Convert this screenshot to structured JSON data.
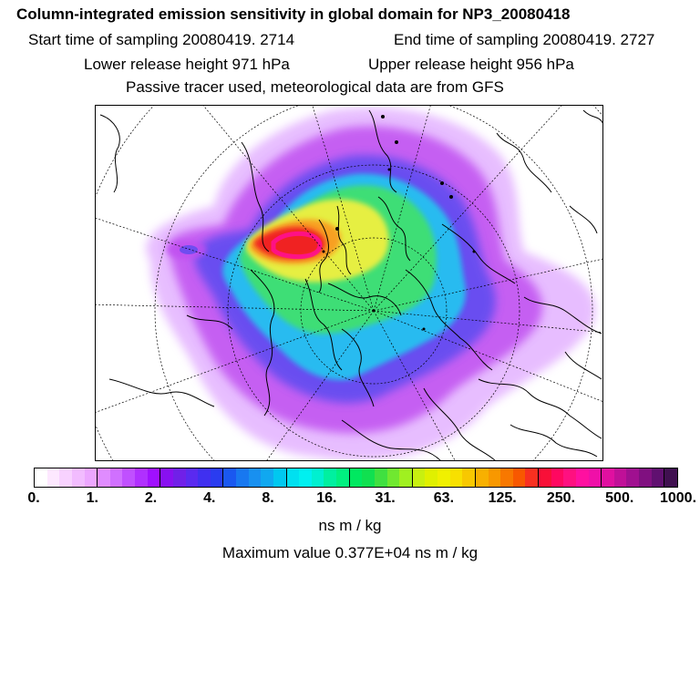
{
  "header": {
    "title": "Column-integrated emission sensitivity in global domain for NP3_20080418",
    "start_label": "Start time of sampling 20080419.  2714",
    "end_label": "End time of sampling 20080419.  2727",
    "lower_label": "Lower release height  971 hPa",
    "upper_label": "Upper release height  956 hPa",
    "note": "Passive tracer used, meteorological data are from GFS"
  },
  "map": {
    "projection": "north-polar-stereographic",
    "plume_colors": {
      "outer": "#e0a8ff",
      "violet": "#c050f0",
      "blue": "#5a4cf0",
      "cyan": "#20c8f0",
      "green": "#40e070",
      "yellow": "#f0f040",
      "orange": "#f8a020",
      "red": "#f02020",
      "magenta": "#ff1090"
    }
  },
  "colorbar": {
    "colors": [
      "#ffffff",
      "#fde8ff",
      "#f8d2ff",
      "#f2bcff",
      "#eca6ff",
      "#e08cff",
      "#d070ff",
      "#c050ff",
      "#b030ff",
      "#a010ff",
      "#8810f0",
      "#7020e8",
      "#5a2af0",
      "#4030f0",
      "#2a3cf0",
      "#1a58f0",
      "#1878f0",
      "#1890f0",
      "#10a8f0",
      "#00c8f0",
      "#00e0f0",
      "#00f0f0",
      "#00f0d0",
      "#00f0a0",
      "#00f080",
      "#00e860",
      "#10e050",
      "#40e040",
      "#70e830",
      "#a0f020",
      "#c8f010",
      "#e0f000",
      "#f0f000",
      "#f8e000",
      "#f8c800",
      "#f8b000",
      "#f89800",
      "#f87800",
      "#f85800",
      "#f83020",
      "#f81038",
      "#ff0860",
      "#ff1080",
      "#ff10a0",
      "#f010a8",
      "#e010a0",
      "#c01098",
      "#a01090",
      "#801080",
      "#601070",
      "#401050"
    ],
    "labels": [
      "0.",
      "1.",
      "2.",
      "4.",
      "8.",
      "16.",
      "31.",
      "63.",
      "125.",
      "250.",
      "500.",
      "1000."
    ],
    "unit": "ns m / kg"
  },
  "footer": {
    "max_value": "Maximum value  0.377E+04 ns m / kg"
  }
}
